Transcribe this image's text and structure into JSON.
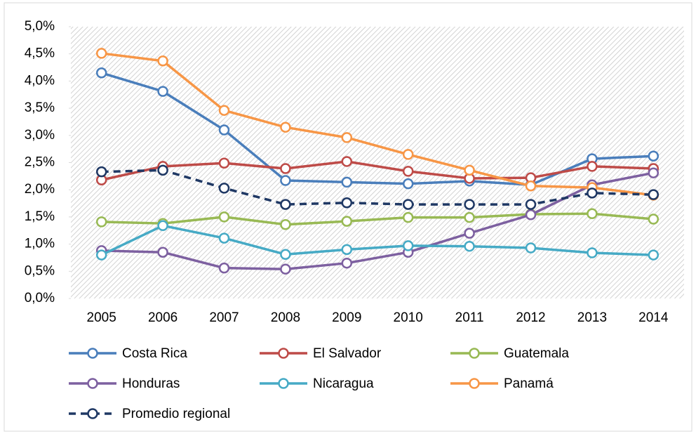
{
  "chart_data": {
    "type": "line",
    "categories": [
      "2005",
      "2006",
      "2007",
      "2008",
      "2009",
      "2010",
      "2011",
      "2012",
      "2013",
      "2014"
    ],
    "series": [
      {
        "name": "Costa Rica",
        "color": "#4a7ebb",
        "values": [
          4.15,
          3.81,
          3.1,
          2.17,
          2.14,
          2.11,
          2.16,
          2.09,
          2.57,
          2.62
        ]
      },
      {
        "name": "El Salvador",
        "color": "#be4b48",
        "values": [
          2.18,
          2.43,
          2.49,
          2.39,
          2.52,
          2.34,
          2.21,
          2.22,
          2.43,
          2.39
        ]
      },
      {
        "name": "Guatemala",
        "color": "#98b954",
        "values": [
          1.41,
          1.38,
          1.5,
          1.36,
          1.42,
          1.49,
          1.49,
          1.55,
          1.56,
          1.46
        ]
      },
      {
        "name": "Honduras",
        "color": "#7d60a0",
        "values": [
          0.88,
          0.85,
          0.56,
          0.54,
          0.65,
          0.85,
          1.2,
          1.54,
          2.09,
          2.31
        ]
      },
      {
        "name": "Nicaragua",
        "color": "#46aac5",
        "values": [
          0.8,
          1.34,
          1.11,
          0.81,
          0.9,
          0.97,
          0.96,
          0.93,
          0.84,
          0.8
        ]
      },
      {
        "name": "Panamá",
        "color": "#f79646",
        "values": [
          4.51,
          4.37,
          3.46,
          3.15,
          2.96,
          2.65,
          2.36,
          2.07,
          2.04,
          1.9
        ]
      },
      {
        "name": "Promedio regional",
        "color": "#1f3864",
        "line_style": "dashed",
        "values": [
          2.33,
          2.36,
          2.03,
          1.73,
          1.76,
          1.73,
          1.73,
          1.73,
          1.94,
          1.91
        ]
      }
    ],
    "ylim": [
      0,
      5
    ],
    "yticks": [
      {
        "value": 0,
        "label": "0,0%"
      },
      {
        "value": 0.5,
        "label": "0,5%"
      },
      {
        "value": 1,
        "label": "1,0%"
      },
      {
        "value": 1.5,
        "label": "1,5%"
      },
      {
        "value": 2,
        "label": "2,0%"
      },
      {
        "value": 2.5,
        "label": "2,5%"
      },
      {
        "value": 3,
        "label": "3,0%"
      },
      {
        "value": 3.5,
        "label": "3,5%"
      },
      {
        "value": 4,
        "label": "4,0%"
      },
      {
        "value": 4.5,
        "label": "4,5%"
      },
      {
        "value": 5,
        "label": "5,0%"
      }
    ],
    "legend": "bottom"
  }
}
